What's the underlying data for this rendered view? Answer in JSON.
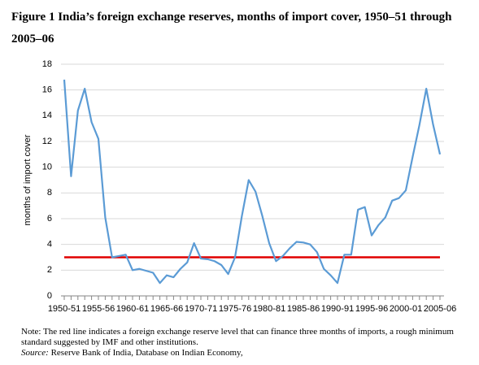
{
  "chart_data": {
    "type": "line",
    "title": "Figure 1 India’s foreign exchange reserves, months of import cover, 1950–51 through 2005–06",
    "y_label": "months of import cover",
    "categories": [
      "1950-51",
      null,
      null,
      null,
      null,
      "1955-56",
      null,
      null,
      null,
      null,
      "1960-61",
      null,
      null,
      null,
      null,
      "1965-66",
      null,
      null,
      null,
      null,
      "1970-71",
      null,
      null,
      null,
      null,
      "1975-76",
      null,
      null,
      null,
      null,
      "1980-81",
      null,
      null,
      null,
      null,
      "1985-86",
      null,
      null,
      null,
      null,
      "1990-91",
      null,
      null,
      null,
      null,
      "1995-96",
      null,
      null,
      null,
      null,
      "2000-01",
      null,
      null,
      null,
      null,
      "2005-06"
    ],
    "series": [
      {
        "name": "months of import cover",
        "color": "#5b9bd5",
        "values": [
          16.8,
          9.3,
          14.4,
          16.1,
          13.5,
          12.2,
          6.1,
          3.0,
          3.1,
          3.2,
          2.0,
          2.1,
          1.95,
          1.8,
          1.0,
          1.6,
          1.45,
          2.1,
          2.6,
          4.1,
          2.9,
          2.85,
          2.7,
          2.4,
          1.7,
          3.0,
          6.2,
          9.0,
          8.1,
          6.2,
          4.1,
          2.7,
          3.1,
          3.7,
          4.2,
          4.15,
          4.0,
          3.4,
          2.1,
          1.6,
          1.0,
          3.2,
          3.2,
          6.7,
          6.9,
          4.7,
          5.5,
          6.1,
          7.4,
          7.6,
          8.2,
          10.8,
          13.3,
          16.1,
          13.3,
          11.0
        ]
      }
    ],
    "reference_line": {
      "value": 3,
      "color": "#e00000"
    },
    "ylim": [
      0,
      18
    ],
    "yticks": [
      0,
      2,
      4,
      6,
      8,
      10,
      12,
      14,
      16,
      18
    ],
    "grid": true,
    "note": "Note: The red line indicates a foreign exchange reserve level that can finance three months of imports, a rough minimum standard suggested by IMF and other institutions.",
    "source_label": "Source:",
    "source": "Reserve Bank of India, Database on Indian Economy,"
  }
}
